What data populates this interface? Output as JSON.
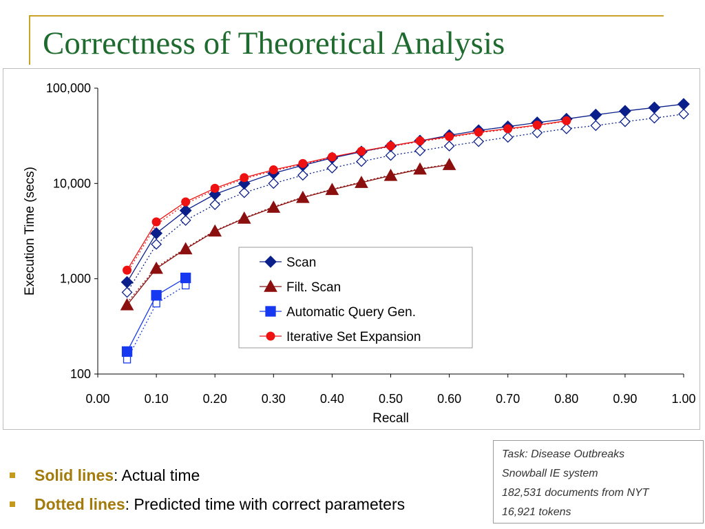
{
  "slide": {
    "title": "Correctness of Theoretical Analysis"
  },
  "info_box": {
    "lines": [
      "Task: Disease Outbreaks",
      "Snowball IE system",
      "182,531 documents from NYT",
      "16,921 tokens"
    ]
  },
  "bullets": [
    {
      "key": "Solid lines",
      "text": ": Actual time"
    },
    {
      "key": "Dotted lines",
      "text": ": Predicted time with correct parameters"
    }
  ],
  "colors": {
    "title": "#1f6b2f",
    "accent_rule": "#c9a227",
    "bullet_key": "#a37b0c",
    "scan": "#0b1f8a",
    "filt_scan": "#8b0f0f",
    "aqg": "#1638f0",
    "ise": "#ee1111"
  },
  "chart_data": {
    "type": "line",
    "title": "",
    "xlabel": "Recall",
    "ylabel": "Execution Time (secs)",
    "x_scale": "linear",
    "y_scale": "log",
    "xlim": [
      0,
      1
    ],
    "ylim": [
      100,
      100000
    ],
    "x_ticks": [
      "0.00",
      "0.10",
      "0.20",
      "0.30",
      "0.40",
      "0.50",
      "0.60",
      "0.70",
      "0.80",
      "0.90",
      "1.00"
    ],
    "y_ticks": [
      "100",
      "1,000",
      "10,000",
      "100,000"
    ],
    "grid": false,
    "legend": {
      "position": "center-right",
      "entries": [
        "Scan",
        "Filt. Scan",
        "Automatic Query Gen.",
        "Iterative Set Expansion"
      ]
    },
    "series": [
      {
        "name": "Scan",
        "style": "solid",
        "marker": "diamond-filled",
        "color": "#0b1f8a",
        "x": [
          0.05,
          0.1,
          0.15,
          0.2,
          0.25,
          0.3,
          0.35,
          0.4,
          0.45,
          0.5,
          0.55,
          0.6,
          0.65,
          0.7,
          0.75,
          0.8,
          0.85,
          0.9,
          0.95,
          1.0
        ],
        "y": [
          920,
          3000,
          5200,
          7700,
          10000,
          12800,
          15500,
          18500,
          21500,
          24700,
          28000,
          32000,
          36000,
          39500,
          43500,
          47500,
          52500,
          57500,
          62500,
          68000
        ]
      },
      {
        "name": "Scan (predicted)",
        "style": "dotted",
        "marker": "diamond-open",
        "color": "#0b1f8a",
        "legend": false,
        "x": [
          0.05,
          0.1,
          0.15,
          0.2,
          0.25,
          0.3,
          0.35,
          0.4,
          0.45,
          0.5,
          0.55,
          0.6,
          0.65,
          0.7,
          0.75,
          0.8,
          0.85,
          0.9,
          0.95,
          1.0
        ],
        "y": [
          720,
          2300,
          4100,
          6000,
          8000,
          10000,
          12200,
          14500,
          17000,
          19700,
          22000,
          24700,
          27500,
          30500,
          34000,
          37500,
          40500,
          44500,
          48500,
          53500
        ]
      },
      {
        "name": "Filt. Scan",
        "style": "solid",
        "marker": "triangle-filled",
        "color": "#8b0f0f",
        "x": [
          0.05,
          0.1,
          0.15,
          0.2,
          0.25,
          0.3,
          0.35,
          0.4,
          0.45,
          0.5,
          0.55,
          0.6
        ],
        "y": [
          530,
          1280,
          2050,
          3150,
          4300,
          5600,
          7100,
          8600,
          10200,
          12100,
          14100,
          15700
        ]
      },
      {
        "name": "Filt. Scan (predicted)",
        "style": "dotted",
        "marker": "none",
        "color": "#8b0f0f",
        "legend": false,
        "x": [
          0.05,
          0.1,
          0.15,
          0.2,
          0.25,
          0.3,
          0.35,
          0.4,
          0.45,
          0.5,
          0.55,
          0.6
        ],
        "y": [
          560,
          1320,
          2100,
          3200,
          4350,
          5700,
          7200,
          8700,
          10400,
          12300,
          14300,
          15900
        ]
      },
      {
        "name": "Automatic Query Gen.",
        "style": "solid",
        "marker": "square-filled",
        "color": "#1638f0",
        "x": [
          0.05,
          0.1,
          0.15
        ],
        "y": [
          172,
          670,
          1020
        ]
      },
      {
        "name": "Automatic Query Gen. (predicted)",
        "style": "dotted",
        "marker": "square-open",
        "color": "#1638f0",
        "legend": false,
        "x": [
          0.05,
          0.1,
          0.15
        ],
        "y": [
          142,
          550,
          850
        ]
      },
      {
        "name": "Iterative Set Expansion",
        "style": "solid",
        "marker": "circle-filled",
        "color": "#ee1111",
        "x": [
          0.05,
          0.1,
          0.15,
          0.2,
          0.25,
          0.3,
          0.35,
          0.4,
          0.45,
          0.5,
          0.55,
          0.6,
          0.65,
          0.7,
          0.75,
          0.8
        ],
        "y": [
          1230,
          3950,
          6400,
          8900,
          11500,
          13900,
          16200,
          19000,
          21800,
          24800,
          28000,
          31000,
          34500,
          37500,
          41000,
          45500
        ]
      },
      {
        "name": "Iterative Set Expansion (predicted)",
        "style": "dotted",
        "marker": "none",
        "color": "#ee1111",
        "legend": false,
        "x": [
          0.05,
          0.1,
          0.15,
          0.2,
          0.25,
          0.3,
          0.35,
          0.4,
          0.45,
          0.5,
          0.55,
          0.6,
          0.65,
          0.7,
          0.75,
          0.8
        ],
        "y": [
          1150,
          3700,
          6100,
          8600,
          11200,
          13600,
          15900,
          18700,
          21500,
          24400,
          27500,
          30500,
          34000,
          37000,
          40500,
          45000
        ]
      }
    ]
  }
}
